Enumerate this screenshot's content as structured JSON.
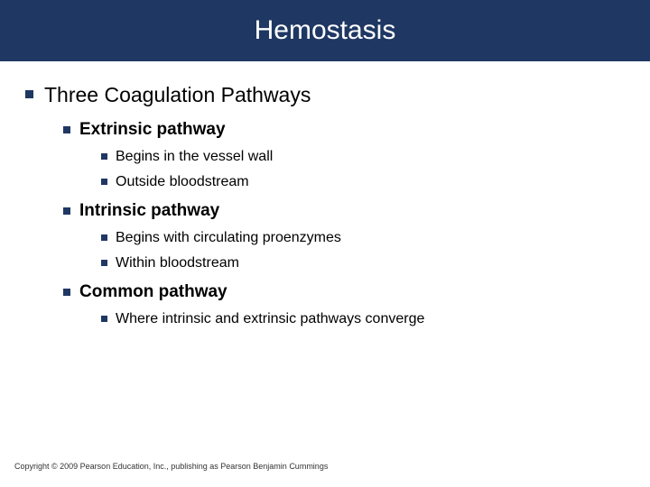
{
  "title_bar": {
    "text": "Hemostasis",
    "background_color": "#1f3763",
    "text_color": "#ffffff",
    "font_size_pt": 30
  },
  "bullet_color": "#1f3763",
  "content": {
    "level1": {
      "text": "Three Coagulation Pathways",
      "font_size_pt": 23
    },
    "sections": [
      {
        "heading": "Extrinsic pathway",
        "heading_font_size_pt": 19,
        "items": [
          "Begins in the vessel wall",
          "Outside bloodstream"
        ],
        "item_font_size_pt": 16
      },
      {
        "heading": "Intrinsic pathway",
        "heading_font_size_pt": 19,
        "items": [
          "Begins with circulating proenzymes",
          "Within bloodstream"
        ],
        "item_font_size_pt": 16
      },
      {
        "heading": "Common pathway",
        "heading_font_size_pt": 19,
        "items": [
          "Where intrinsic and extrinsic pathways converge"
        ],
        "item_font_size_pt": 16
      }
    ]
  },
  "footer": {
    "text": "Copyright © 2009 Pearson Education, Inc., publishing as Pearson Benjamin Cummings",
    "font_size_pt": 9,
    "color": "#333333"
  },
  "slide_background": "#ffffff"
}
